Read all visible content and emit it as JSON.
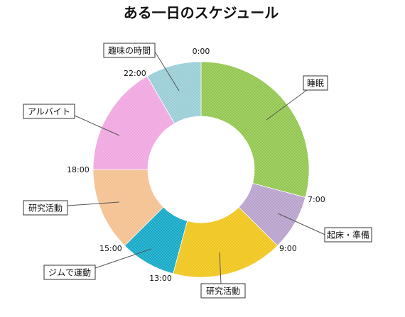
{
  "chart_data": {
    "type": "pie",
    "title": "ある一日のスケジュール",
    "donut": true,
    "unit": "hours",
    "slices": [
      {
        "label": "睡眠",
        "start": 0,
        "end": 7,
        "value": 7,
        "color": "#92c64e",
        "pattern": "dots"
      },
      {
        "label": "起床・準備",
        "start": 7,
        "end": 9,
        "value": 2,
        "color": "#b8a1cc",
        "pattern": "dots"
      },
      {
        "label": "研究活動",
        "start": 9,
        "end": 13,
        "value": 4,
        "color": "#f0c519",
        "pattern": "dots"
      },
      {
        "label": "ジムで運動",
        "start": 13,
        "end": 15,
        "value": 2,
        "color": "#13a9c7",
        "pattern": "dots"
      },
      {
        "label": "研究活動",
        "start": 15,
        "end": 18,
        "value": 3,
        "color": "#f4c08f",
        "pattern": "dots"
      },
      {
        "label": "アルバイト",
        "start": 18,
        "end": 22,
        "value": 4,
        "color": "#f0a6e0",
        "pattern": "dots"
      },
      {
        "label": "趣味の時間",
        "start": 22,
        "end": 24,
        "value": 2,
        "color": "#99cdd6",
        "pattern": "dots"
      }
    ],
    "time_ticks": [
      "0:00",
      "7:00",
      "9:00",
      "13:00",
      "15:00",
      "18:00",
      "22:00"
    ]
  }
}
